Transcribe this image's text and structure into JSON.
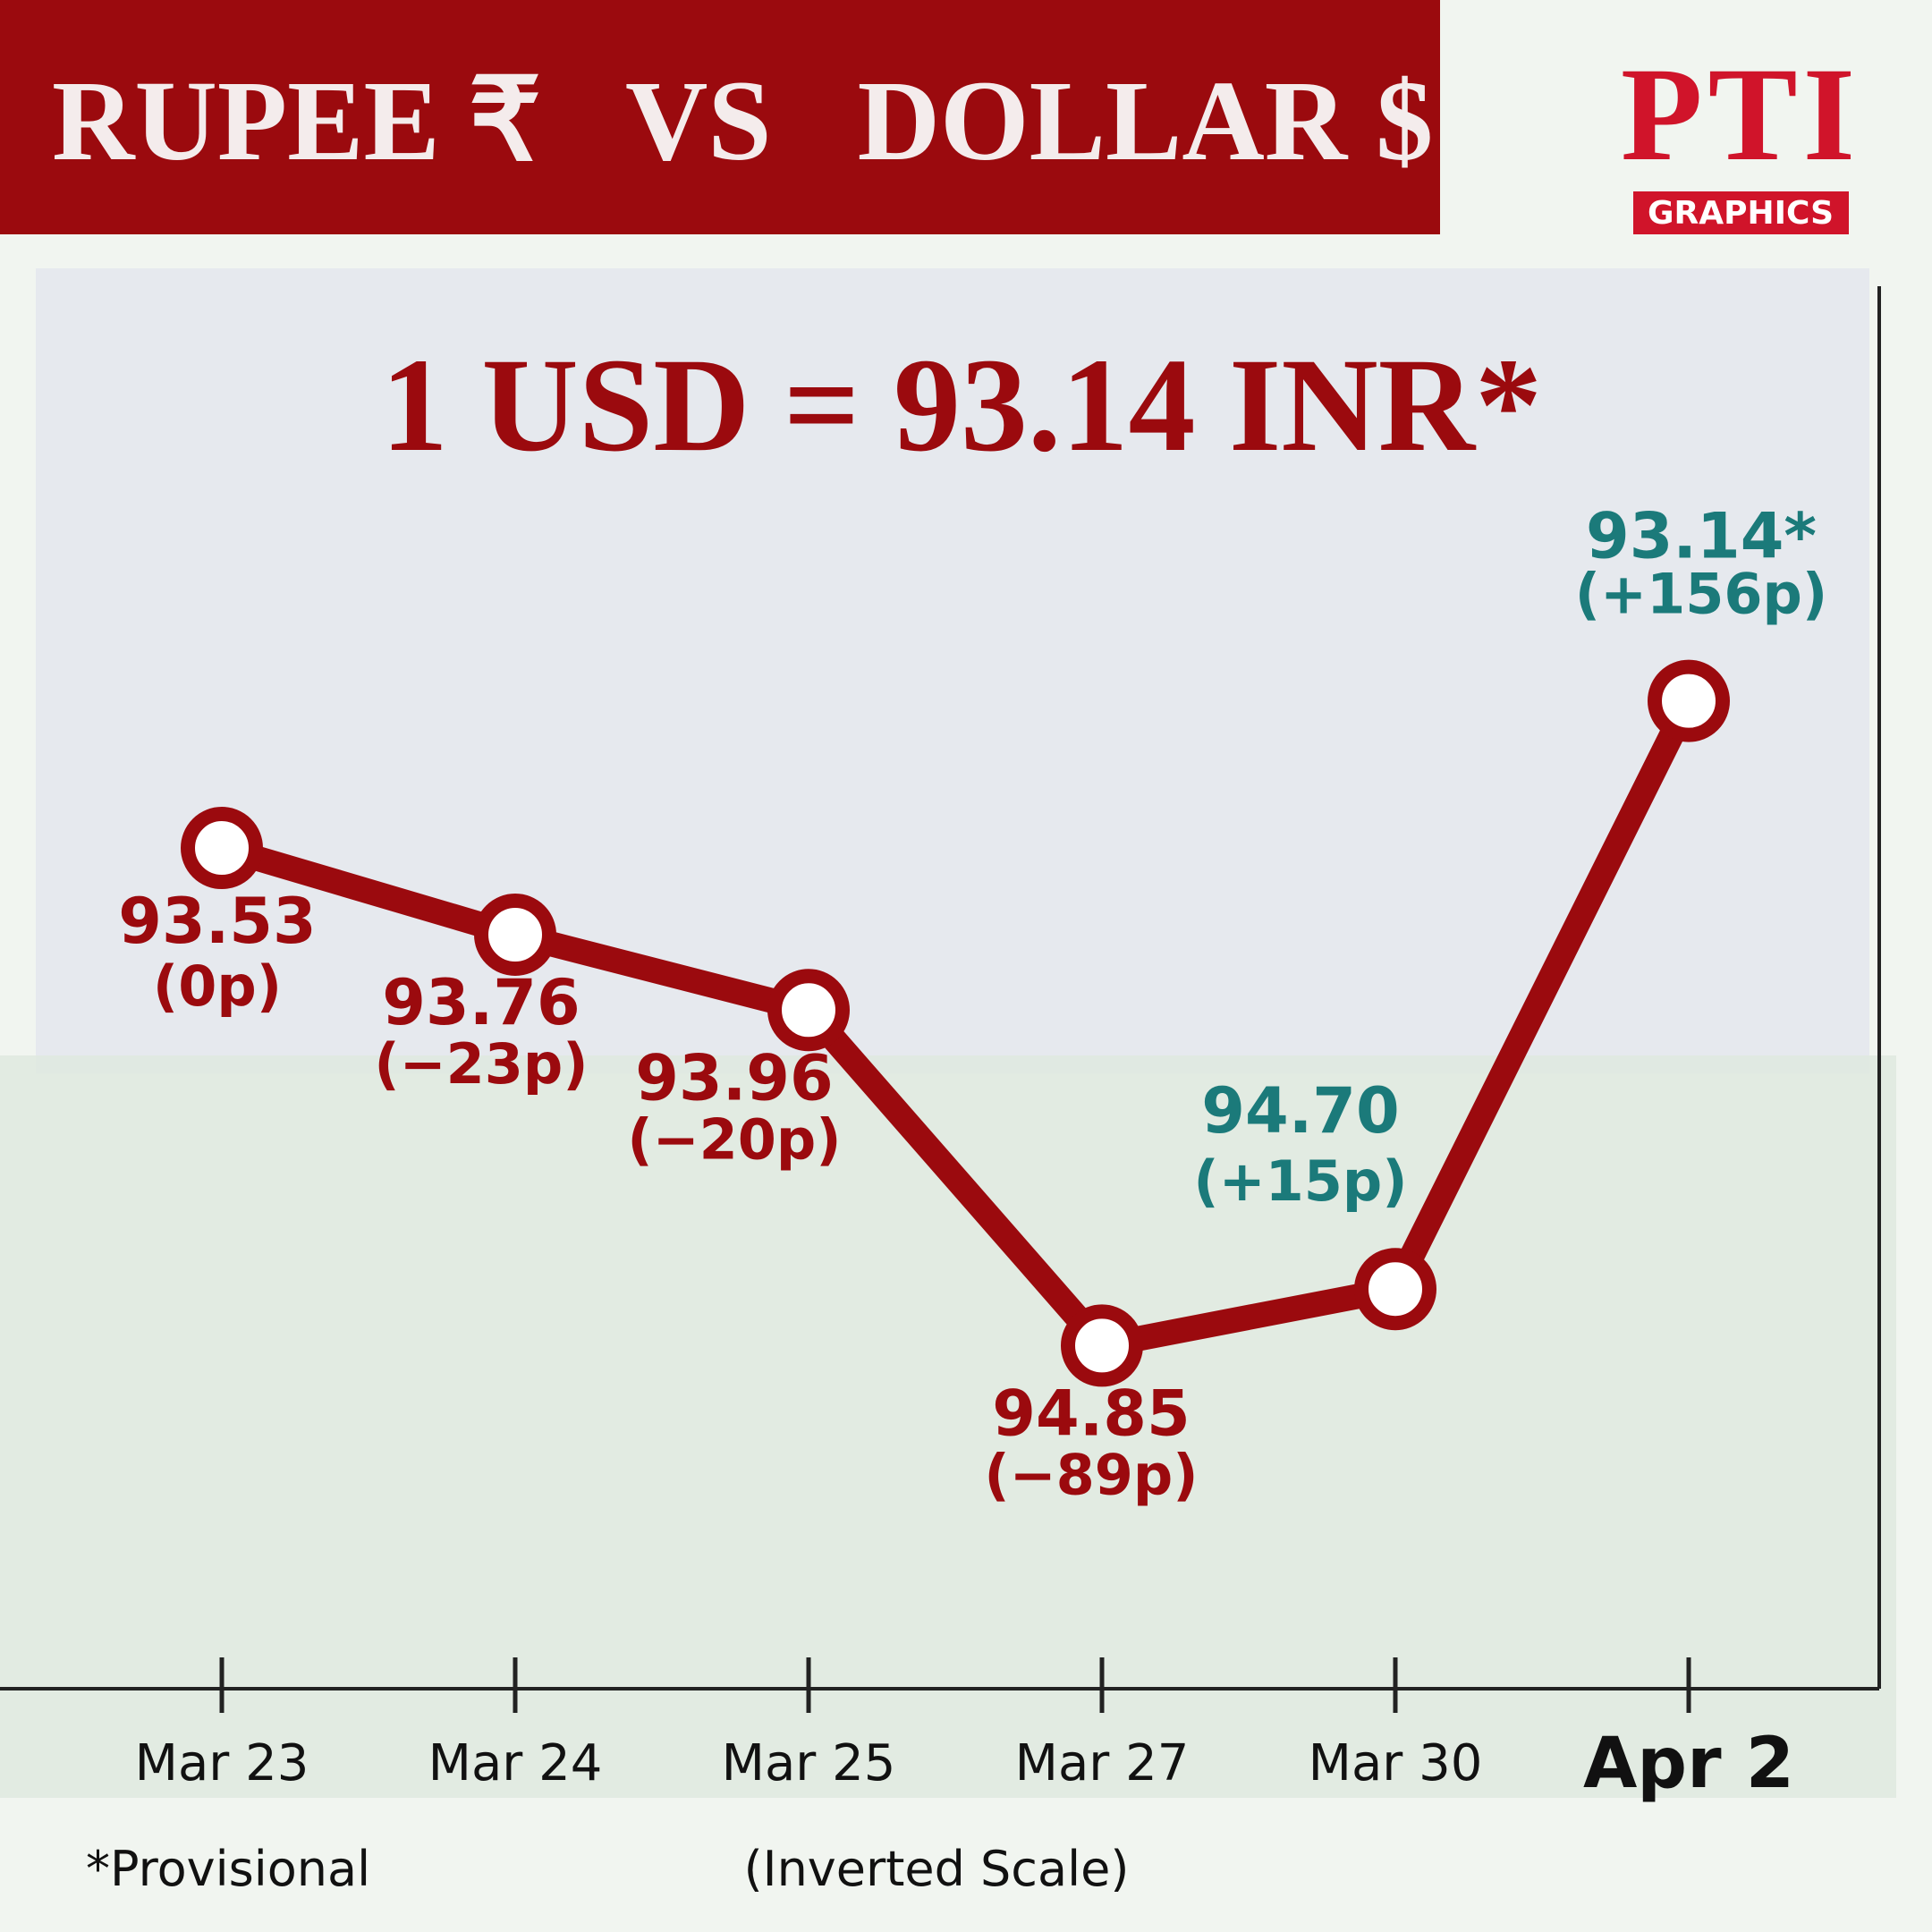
{
  "header": {
    "title": "RUPEE ₹   VS   DOLLAR $",
    "logo": "PTI",
    "logo_caption": "GRAPHICS"
  },
  "chart_data": {
    "type": "line",
    "headline": "1 USD = 93.14 INR*",
    "categories": [
      "Mar 23",
      "Mar 24",
      "Mar 25",
      "Mar 27",
      "Mar 30",
      "Apr 2"
    ],
    "series": [
      {
        "color": "#9b0a0e",
        "values": [
          93.53,
          93.76,
          93.96,
          94.85,
          94.7,
          93.14
        ],
        "value_labels": [
          "93.53",
          "93.76",
          "93.96",
          "94.85",
          "94.70",
          "93.14*"
        ],
        "change_labels": [
          "(0p)",
          "(−23p)",
          "(−20p)",
          "(−89p)",
          "(+15p)",
          "(+156p)"
        ],
        "label_colors": [
          "#9b0a0e",
          "#9b0a0e",
          "#9b0a0e",
          "#9b0a0e",
          "#1b7a7a",
          "#1b7a7a"
        ]
      }
    ],
    "ylim": [
      95.76,
      92.04
    ],
    "inverted": true,
    "footnote": "*Provisional",
    "scale_note": "(Inverted Scale)"
  }
}
